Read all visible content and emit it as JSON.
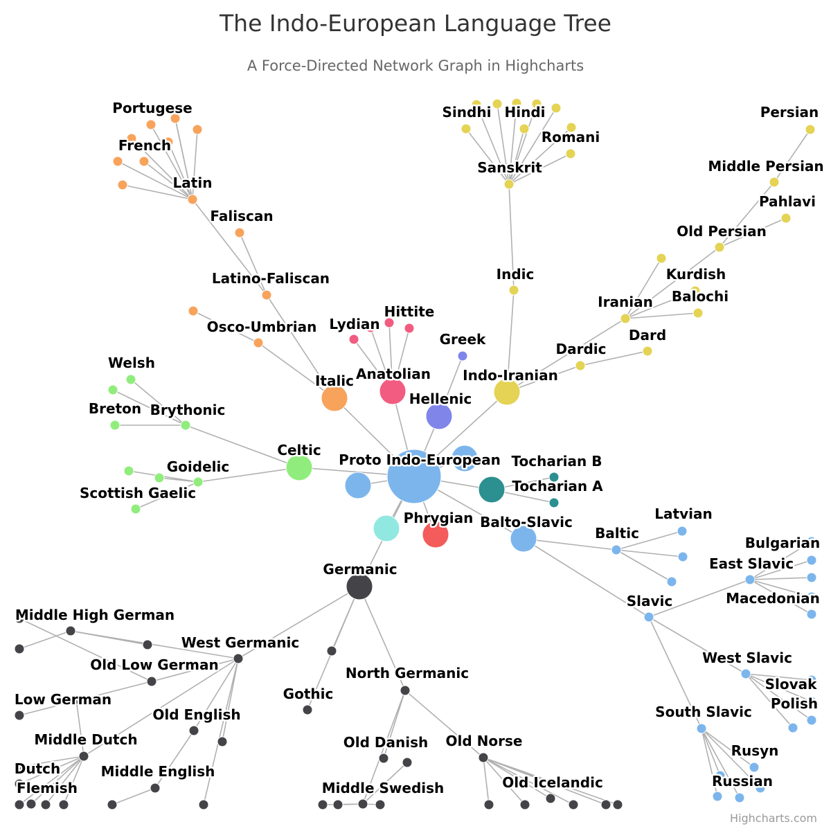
{
  "chart": {
    "title": "The Indo-European Language Tree",
    "subtitle": "A Force-Directed Network Graph in Highcharts",
    "credits": "Highcharts.com"
  },
  "chart_data": {
    "type": "network",
    "colors": {
      "root": "#7cb5ec",
      "edge": "#b0b0b0",
      "Italic": "#f7a35c",
      "Anatolian": "#f15c80",
      "Hellenic": "#8085e9",
      "Indo-Iranian": "#e4d354",
      "Tocharian": "#2b908f",
      "Celtic": "#90ed7d",
      "Balto-Slavic": "#7cb5ec",
      "Germanic": "#434348",
      "Phrygian": "#f45b5b",
      "Armenian": "#91e8e1",
      "Albanian": "#7cb5ec"
    },
    "nodes": [
      {
        "id": "Proto Indo-European",
        "group": "root",
        "label": "Proto Indo-European"
      },
      {
        "id": "Italic",
        "group": "Italic",
        "label": "Italic"
      },
      {
        "id": "Latino-Faliscan",
        "group": "Italic",
        "label": "Latino-Faliscan"
      },
      {
        "id": "Faliscan",
        "group": "Italic",
        "label": "Faliscan"
      },
      {
        "id": "Latin",
        "group": "Italic",
        "label": "Latin"
      },
      {
        "id": "Portugese",
        "group": "Italic",
        "label": "Portugese"
      },
      {
        "id": "French",
        "group": "Italic",
        "label": "French"
      },
      {
        "id": "Osco-Umbrian",
        "group": "Italic",
        "label": "Osco-Umbrian"
      },
      {
        "id": "Anatolian",
        "group": "Anatolian",
        "label": "Anatolian"
      },
      {
        "id": "Hittite",
        "group": "Anatolian",
        "label": "Hittite"
      },
      {
        "id": "Lydian",
        "group": "Anatolian",
        "label": "Lydian"
      },
      {
        "id": "Hellenic",
        "group": "Hellenic",
        "label": "Hellenic"
      },
      {
        "id": "Greek",
        "group": "Hellenic",
        "label": "Greek"
      },
      {
        "id": "Indo-Iranian",
        "group": "Indo-Iranian",
        "label": "Indo-Iranian"
      },
      {
        "id": "Indic",
        "group": "Indo-Iranian",
        "label": "Indic"
      },
      {
        "id": "Sanskrit",
        "group": "Indo-Iranian",
        "label": "Sanskrit"
      },
      {
        "id": "Sindhi",
        "group": "Indo-Iranian",
        "label": "Sindhi"
      },
      {
        "id": "Hindi",
        "group": "Indo-Iranian",
        "label": "Hindi"
      },
      {
        "id": "Romani",
        "group": "Indo-Iranian",
        "label": "Romani"
      },
      {
        "id": "Iranian",
        "group": "Indo-Iranian",
        "label": "Iranian"
      },
      {
        "id": "Old Persian",
        "group": "Indo-Iranian",
        "label": "Old Persian"
      },
      {
        "id": "Middle Persian",
        "group": "Indo-Iranian",
        "label": "Middle Persian"
      },
      {
        "id": "Persian",
        "group": "Indo-Iranian",
        "label": "Persian"
      },
      {
        "id": "Pahlavi",
        "group": "Indo-Iranian",
        "label": "Pahlavi"
      },
      {
        "id": "Kurdish",
        "group": "Indo-Iranian",
        "label": "Kurdish"
      },
      {
        "id": "Balochi",
        "group": "Indo-Iranian",
        "label": "Balochi"
      },
      {
        "id": "Dardic",
        "group": "Indo-Iranian",
        "label": "Dardic"
      },
      {
        "id": "Dard",
        "group": "Indo-Iranian",
        "label": "Dard"
      },
      {
        "id": "Tocharian",
        "group": "Tocharian",
        "label": ""
      },
      {
        "id": "Tocharian A",
        "group": "Tocharian",
        "label": "Tocharian A"
      },
      {
        "id": "Tocharian B",
        "group": "Tocharian",
        "label": "Tocharian B"
      },
      {
        "id": "Celtic",
        "group": "Celtic",
        "label": "Celtic"
      },
      {
        "id": "Brythonic",
        "group": "Celtic",
        "label": "Brythonic"
      },
      {
        "id": "Welsh",
        "group": "Celtic",
        "label": "Welsh"
      },
      {
        "id": "Breton",
        "group": "Celtic",
        "label": "Breton"
      },
      {
        "id": "Goidelic",
        "group": "Celtic",
        "label": "Goidelic"
      },
      {
        "id": "Scottish Gaelic",
        "group": "Celtic",
        "label": "Scottish Gaelic"
      },
      {
        "id": "Balto-Slavic",
        "group": "Balto-Slavic",
        "label": "Balto-Slavic"
      },
      {
        "id": "Baltic",
        "group": "Balto-Slavic",
        "label": "Baltic"
      },
      {
        "id": "Latvian",
        "group": "Balto-Slavic",
        "label": "Latvian"
      },
      {
        "id": "Slavic",
        "group": "Balto-Slavic",
        "label": "Slavic"
      },
      {
        "id": "East Slavic",
        "group": "Balto-Slavic",
        "label": "East Slavic"
      },
      {
        "id": "Bulgarian",
        "group": "Balto-Slavic",
        "label": "Bulgarian"
      },
      {
        "id": "Macedonian",
        "group": "Balto-Slavic",
        "label": "Macedonian"
      },
      {
        "id": "West Slavic",
        "group": "Balto-Slavic",
        "label": "West Slavic"
      },
      {
        "id": "Slovak",
        "group": "Balto-Slavic",
        "label": "Slovak"
      },
      {
        "id": "Polish",
        "group": "Balto-Slavic",
        "label": "Polish"
      },
      {
        "id": "South Slavic",
        "group": "Balto-Slavic",
        "label": "South Slavic"
      },
      {
        "id": "Rusyn",
        "group": "Balto-Slavic",
        "label": "Rusyn"
      },
      {
        "id": "Russian",
        "group": "Balto-Slavic",
        "label": "Russian"
      },
      {
        "id": "Germanic",
        "group": "Germanic",
        "label": "Germanic"
      },
      {
        "id": "West Germanic",
        "group": "Germanic",
        "label": "West Germanic"
      },
      {
        "id": "Middle High German",
        "group": "Germanic",
        "label": "Middle High German"
      },
      {
        "id": "Old Low German",
        "group": "Germanic",
        "label": "Old Low German"
      },
      {
        "id": "Low German",
        "group": "Germanic",
        "label": "Low German"
      },
      {
        "id": "Old English",
        "group": "Germanic",
        "label": "Old English"
      },
      {
        "id": "Middle English",
        "group": "Germanic",
        "label": "Middle English"
      },
      {
        "id": "Middle Dutch",
        "group": "Germanic",
        "label": "Middle Dutch"
      },
      {
        "id": "Dutch",
        "group": "Germanic",
        "label": "Dutch"
      },
      {
        "id": "Flemish",
        "group": "Germanic",
        "label": "Flemish"
      },
      {
        "id": "Gothic",
        "group": "Germanic",
        "label": "Gothic"
      },
      {
        "id": "North Germanic",
        "group": "Germanic",
        "label": "North Germanic"
      },
      {
        "id": "Old Danish",
        "group": "Germanic",
        "label": "Old Danish"
      },
      {
        "id": "Middle Swedish",
        "group": "Germanic",
        "label": "Middle Swedish"
      },
      {
        "id": "Old Norse",
        "group": "Germanic",
        "label": "Old Norse"
      },
      {
        "id": "Old Icelandic",
        "group": "Germanic",
        "label": "Old Icelandic"
      },
      {
        "id": "Phrygian",
        "group": "Phrygian",
        "label": "Phrygian"
      },
      {
        "id": "Armenian",
        "group": "Armenian",
        "label": ""
      },
      {
        "id": "Albanian",
        "group": "Albanian",
        "label": ""
      },
      {
        "id": "Branch 2",
        "group": "root",
        "label": ""
      }
    ],
    "links": [
      [
        "Proto Indo-European",
        "Italic"
      ],
      [
        "Proto Indo-European",
        "Anatolian"
      ],
      [
        "Proto Indo-European",
        "Hellenic"
      ],
      [
        "Proto Indo-European",
        "Indo-Iranian"
      ],
      [
        "Proto Indo-European",
        "Tocharian"
      ],
      [
        "Proto Indo-European",
        "Celtic"
      ],
      [
        "Proto Indo-European",
        "Balto-Slavic"
      ],
      [
        "Proto Indo-European",
        "Germanic"
      ],
      [
        "Proto Indo-European",
        "Phrygian"
      ],
      [
        "Proto Indo-European",
        "Armenian"
      ],
      [
        "Proto Indo-European",
        "Albanian"
      ],
      [
        "Proto Indo-European",
        "Branch 2"
      ],
      [
        "Italic",
        "Latino-Faliscan"
      ],
      [
        "Italic",
        "Osco-Umbrian"
      ],
      [
        "Latino-Faliscan",
        "Faliscan"
      ],
      [
        "Latino-Faliscan",
        "Latin"
      ],
      [
        "Latin",
        "Portugese"
      ],
      [
        "Latin",
        "French"
      ],
      [
        "Anatolian",
        "Hittite"
      ],
      [
        "Anatolian",
        "Lydian"
      ],
      [
        "Hellenic",
        "Greek"
      ],
      [
        "Indo-Iranian",
        "Indic"
      ],
      [
        "Indo-Iranian",
        "Iranian"
      ],
      [
        "Indo-Iranian",
        "Dardic"
      ],
      [
        "Indic",
        "Sanskrit"
      ],
      [
        "Sanskrit",
        "Sindhi"
      ],
      [
        "Sanskrit",
        "Hindi"
      ],
      [
        "Sanskrit",
        "Romani"
      ],
      [
        "Iranian",
        "Old Persian"
      ],
      [
        "Old Persian",
        "Middle Persian"
      ],
      [
        "Middle Persian",
        "Persian"
      ],
      [
        "Old Persian",
        "Pahlavi"
      ],
      [
        "Iranian",
        "Kurdish"
      ],
      [
        "Iranian",
        "Balochi"
      ],
      [
        "Dardic",
        "Dard"
      ],
      [
        "Tocharian",
        "Tocharian A"
      ],
      [
        "Tocharian",
        "Tocharian B"
      ],
      [
        "Celtic",
        "Brythonic"
      ],
      [
        "Celtic",
        "Goidelic"
      ],
      [
        "Brythonic",
        "Welsh"
      ],
      [
        "Brythonic",
        "Breton"
      ],
      [
        "Goidelic",
        "Scottish Gaelic"
      ],
      [
        "Balto-Slavic",
        "Baltic"
      ],
      [
        "Balto-Slavic",
        "Slavic"
      ],
      [
        "Baltic",
        "Latvian"
      ],
      [
        "Slavic",
        "East Slavic"
      ],
      [
        "Slavic",
        "West Slavic"
      ],
      [
        "Slavic",
        "South Slavic"
      ],
      [
        "East Slavic",
        "Bulgarian"
      ],
      [
        "East Slavic",
        "Macedonian"
      ],
      [
        "West Slavic",
        "Slovak"
      ],
      [
        "West Slavic",
        "Polish"
      ],
      [
        "South Slavic",
        "Rusyn"
      ],
      [
        "South Slavic",
        "Russian"
      ],
      [
        "Germanic",
        "West Germanic"
      ],
      [
        "Germanic",
        "Gothic"
      ],
      [
        "Germanic",
        "North Germanic"
      ],
      [
        "West Germanic",
        "Middle High German"
      ],
      [
        "West Germanic",
        "Old Low German"
      ],
      [
        "Old Low German",
        "Low German"
      ],
      [
        "West Germanic",
        "Old English"
      ],
      [
        "Old English",
        "Middle English"
      ],
      [
        "West Germanic",
        "Middle Dutch"
      ],
      [
        "Middle Dutch",
        "Dutch"
      ],
      [
        "Middle Dutch",
        "Flemish"
      ],
      [
        "North Germanic",
        "Old Danish"
      ],
      [
        "North Germanic",
        "Middle Swedish"
      ],
      [
        "North Germanic",
        "Old Norse"
      ],
      [
        "Old Norse",
        "Old Icelandic"
      ]
    ],
    "unlabeled_leaves": {
      "Latin": 7,
      "Osco-Umbrian": 1,
      "Anatolian": 2,
      "Sanskrit": 6,
      "Iranian": 1,
      "Brythonic": 1,
      "Goidelic": 2,
      "Baltic": 2,
      "East Slavic": 3,
      "West Slavic": 2,
      "South Slavic": 3,
      "Middle High German": 2,
      "West Germanic": 2,
      "Middle Dutch": 5,
      "Middle English": 1,
      "Old Low German": 1,
      "Middle Swedish": 4,
      "Old Norse": 6
    }
  }
}
